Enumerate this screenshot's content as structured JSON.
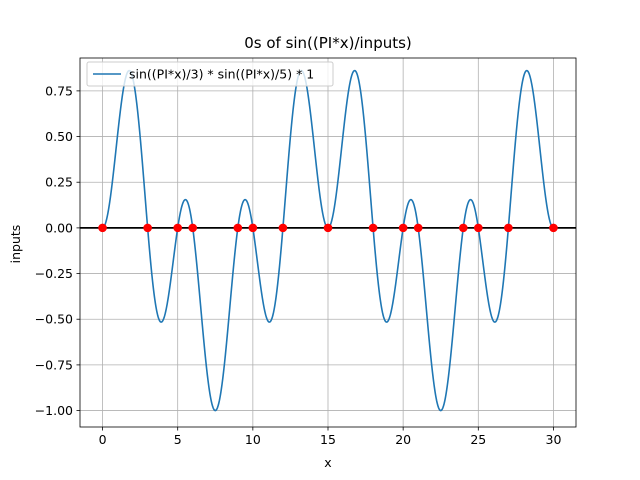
{
  "chart_data": {
    "type": "line",
    "title": "0s of sin((PI*x)/inputs)",
    "xlabel": "x",
    "ylabel": "inputs",
    "xlim": [
      -1.5,
      31.5
    ],
    "ylim": [
      -1.09,
      0.93
    ],
    "xticks": [
      0,
      5,
      10,
      15,
      20,
      25,
      30
    ],
    "yticks": [
      -1.0,
      -0.75,
      -0.5,
      -0.25,
      0.0,
      0.25,
      0.5,
      0.75
    ],
    "ytick_labels": [
      "−1.00",
      "−0.75",
      "−0.50",
      "−0.25",
      "0.00",
      "0.25",
      "0.50",
      "0.75"
    ],
    "grid": true,
    "legend_position": "top-left",
    "colors": {
      "curve": "#1f77b4",
      "zeros": "#ff0000",
      "zero_line": "#000000",
      "grid": "#b0b0b0"
    },
    "series": [
      {
        "name": "sin((PI*x)/3) * sin((PI*x)/5) * 1",
        "kind": "line",
        "function": "sin((PI*x)/3) * sin((PI*x)/5) * 1",
        "x_range": [
          0,
          30
        ]
      }
    ],
    "zeros": {
      "x": [
        0,
        3,
        5,
        6,
        9,
        10,
        12,
        15,
        18,
        20,
        21,
        24,
        25,
        27,
        30
      ],
      "y": [
        0,
        0,
        0,
        0,
        0,
        0,
        0,
        0,
        0,
        0,
        0,
        0,
        0,
        0,
        0
      ]
    },
    "hlines": [
      0
    ]
  }
}
